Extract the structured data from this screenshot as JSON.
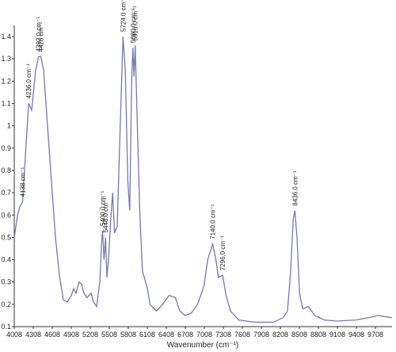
{
  "chart_data": {
    "type": "line",
    "xlabel": "Wavenumber (cm⁻¹)",
    "color": "#7478b2",
    "x": [
      4008,
      4060,
      4100,
      4138,
      4180,
      4236,
      4283,
      4345,
      4392,
      4428,
      4470,
      4533,
      4595,
      4658,
      4720,
      4783,
      4845,
      4908,
      4945,
      4983,
      5033,
      5070,
      5108,
      5158,
      5220,
      5258,
      5308,
      5358,
      5380,
      5400,
      5425,
      5448,
      5470,
      5500,
      5530,
      5560,
      5590,
      5633,
      5680,
      5724,
      5760,
      5800,
      5830,
      5860,
      5880,
      5898,
      5916,
      5950,
      5990,
      6030,
      6080,
      6110,
      6150,
      6250,
      6350,
      6450,
      6550,
      6620,
      6700,
      6800,
      6900,
      7000,
      7060,
      7140,
      7190,
      7230,
      7296,
      7350,
      7420,
      7550,
      7800,
      8100,
      8250,
      8320,
      8370,
      8410,
      8436,
      8470,
      8510,
      8560,
      8650,
      8750,
      8900,
      9100,
      9400,
      9600,
      9750,
      9850,
      9970
    ],
    "values": [
      0.5,
      0.6,
      0.64,
      0.66,
      0.85,
      1.1,
      1.07,
      1.25,
      1.31,
      1.31,
      1.25,
      1.0,
      0.75,
      0.5,
      0.33,
      0.22,
      0.21,
      0.24,
      0.27,
      0.25,
      0.3,
      0.29,
      0.25,
      0.23,
      0.25,
      0.21,
      0.19,
      0.3,
      0.45,
      0.53,
      0.4,
      0.5,
      0.32,
      0.42,
      0.58,
      0.7,
      0.52,
      0.55,
      1.0,
      1.4,
      1.25,
      0.75,
      0.62,
      1.2,
      1.35,
      1.22,
      1.36,
      1.0,
      0.6,
      0.35,
      0.3,
      0.27,
      0.2,
      0.17,
      0.2,
      0.24,
      0.23,
      0.17,
      0.15,
      0.16,
      0.2,
      0.28,
      0.4,
      0.47,
      0.4,
      0.32,
      0.33,
      0.24,
      0.17,
      0.13,
      0.12,
      0.12,
      0.14,
      0.17,
      0.35,
      0.58,
      0.62,
      0.5,
      0.25,
      0.18,
      0.19,
      0.15,
      0.13,
      0.125,
      0.13,
      0.14,
      0.15,
      0.145,
      0.14
    ],
    "xlim": [
      4008,
      9970
    ],
    "ylim": [
      0.1,
      1.45
    ],
    "xticks": [
      4008,
      4308,
      4608,
      4908,
      5208,
      5508,
      5808,
      6108,
      6408,
      6708,
      7008,
      7308,
      7608,
      7908,
      8208,
      8508,
      8808,
      9108,
      9408,
      9708
    ],
    "yticks": [
      0.1,
      0.2,
      0.3,
      0.4,
      0.5,
      0.6,
      0.7,
      0.8,
      0.9,
      1,
      1.1,
      1.2,
      1.3,
      1.4
    ],
    "annotations": [
      {
        "text": "4138 cm⁻¹",
        "x": 4138,
        "y": 0.66
      },
      {
        "text": "4236.0 cm⁻¹",
        "x": 4236,
        "y": 1.1
      },
      {
        "text": "4392.0 cm⁻¹",
        "x": 4392,
        "y": 1.31
      },
      {
        "text": "4428 cm⁻¹",
        "x": 4428,
        "y": 1.31
      },
      {
        "text": "5400.0 cm⁻¹",
        "x": 5400,
        "y": 0.53
      },
      {
        "text": "5448.0 cm⁻¹",
        "x": 5448,
        "y": 0.5
      },
      {
        "text": "5724.0 cm⁻¹",
        "x": 5724,
        "y": 1.4
      },
      {
        "text": "5880.0 cm⁻¹",
        "x": 5880,
        "y": 1.35
      },
      {
        "text": "5916.0 cm⁻¹",
        "x": 5916,
        "y": 1.36
      },
      {
        "text": "7140.0 cm⁻¹",
        "x": 7140,
        "y": 0.47
      },
      {
        "text": "7296.0 cm⁻¹",
        "x": 7296,
        "y": 0.33
      },
      {
        "text": "8436.0 cm⁻¹",
        "x": 8436,
        "y": 0.62
      }
    ]
  }
}
